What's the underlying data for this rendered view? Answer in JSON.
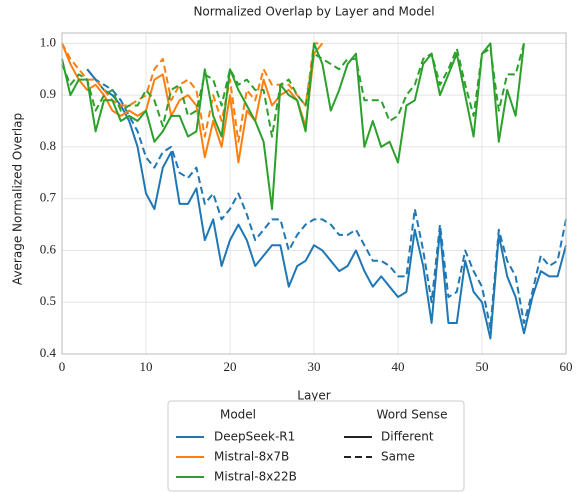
{
  "chart_data": {
    "type": "line",
    "title": "Normalized Overlap by Layer and Model",
    "x_label": "Layer",
    "y_label": "Average Normalized Overlap",
    "xlim": [
      0,
      60
    ],
    "xticks": [
      0,
      10,
      20,
      30,
      40,
      50,
      60
    ],
    "ylim": [
      0.4,
      1.02
    ],
    "yticks": [
      0.4,
      0.5,
      0.6,
      0.7,
      0.8,
      0.9,
      {
        "value": 1,
        "label": "1.0"
      }
    ],
    "grid": true,
    "legend": {
      "model_title": "Model",
      "sense_title": "Word Sense",
      "models": [
        {
          "name": "DeepSeek-R1",
          "color": "#1f77b4"
        },
        {
          "name": "Mistral-8x7B",
          "color": "#ff7f0e"
        },
        {
          "name": "Mistral-8x22B",
          "color": "#2ca02c"
        }
      ],
      "senses": [
        {
          "name": "Different",
          "dash": "solid"
        },
        {
          "name": "Same",
          "dash": "dashed"
        }
      ]
    },
    "x": [
      0,
      1,
      2,
      3,
      4,
      5,
      6,
      7,
      8,
      9,
      10,
      11,
      12,
      13,
      14,
      15,
      16,
      17,
      18,
      19,
      20,
      21,
      22,
      23,
      24,
      25,
      26,
      27,
      28,
      29,
      30,
      31,
      32,
      33,
      34,
      35,
      36,
      37,
      38,
      39,
      40,
      41,
      42,
      43,
      44,
      45,
      46,
      47,
      48,
      49,
      50,
      51,
      52,
      53,
      54,
      55,
      56,
      57,
      58,
      59,
      60
    ],
    "series": [
      {
        "model": 0,
        "sense": 0,
        "values": [
          null,
          null,
          null,
          0.95,
          0.93,
          0.91,
          0.9,
          0.88,
          0.85,
          0.8,
          0.71,
          0.68,
          0.76,
          0.79,
          0.69,
          0.69,
          0.72,
          0.62,
          0.66,
          0.57,
          0.62,
          0.65,
          0.62,
          0.57,
          0.59,
          0.61,
          0.61,
          0.53,
          0.57,
          0.58,
          0.61,
          0.6,
          0.58,
          0.56,
          0.57,
          0.6,
          0.56,
          0.53,
          0.55,
          0.53,
          0.51,
          0.52,
          0.64,
          0.57,
          0.46,
          0.64,
          0.46,
          0.46,
          0.58,
          0.52,
          0.5,
          0.43,
          0.63,
          0.55,
          0.51,
          0.44,
          0.51,
          0.56,
          0.55,
          0.55,
          0.61
        ]
      },
      {
        "model": 0,
        "sense": 1,
        "values": [
          null,
          null,
          null,
          0.95,
          0.93,
          0.92,
          0.91,
          0.89,
          0.86,
          0.83,
          0.78,
          0.76,
          0.79,
          0.8,
          0.75,
          0.74,
          0.76,
          0.69,
          0.71,
          0.66,
          0.68,
          0.71,
          0.67,
          0.62,
          0.64,
          0.66,
          0.66,
          0.6,
          0.63,
          0.65,
          0.66,
          0.66,
          0.65,
          0.63,
          0.63,
          0.64,
          0.61,
          0.58,
          0.58,
          0.57,
          0.55,
          0.55,
          0.68,
          0.6,
          0.5,
          0.65,
          0.51,
          0.52,
          0.6,
          0.56,
          0.53,
          0.45,
          0.64,
          0.58,
          0.55,
          0.46,
          0.52,
          0.59,
          0.57,
          0.58,
          0.66
        ]
      },
      {
        "model": 1,
        "sense": 0,
        "values": [
          1.0,
          0.96,
          0.93,
          0.91,
          0.92,
          0.9,
          0.87,
          0.86,
          0.87,
          0.86,
          0.87,
          0.93,
          0.94,
          0.86,
          0.89,
          0.9,
          0.88,
          0.78,
          0.85,
          0.8,
          0.9,
          0.77,
          0.87,
          0.85,
          0.93,
          0.88,
          0.9,
          0.91,
          0.89,
          0.84,
          0.98,
          1.0,
          null,
          null,
          null,
          null,
          null,
          null,
          null,
          null,
          null,
          null,
          null,
          null,
          null,
          null,
          null,
          null,
          null,
          null,
          null,
          null,
          null,
          null,
          null,
          null,
          null,
          null,
          null,
          null,
          null
        ]
      },
      {
        "model": 1,
        "sense": 1,
        "values": [
          1.0,
          0.97,
          0.95,
          0.93,
          0.93,
          0.91,
          0.89,
          0.88,
          0.88,
          0.89,
          0.9,
          0.95,
          0.97,
          0.89,
          0.92,
          0.93,
          0.91,
          0.82,
          0.9,
          0.85,
          0.93,
          0.81,
          0.91,
          0.89,
          0.95,
          0.92,
          0.92,
          0.92,
          0.9,
          0.88,
          1.0,
          1.0,
          null,
          null,
          null,
          null,
          null,
          null,
          null,
          null,
          null,
          null,
          null,
          null,
          null,
          null,
          null,
          null,
          null,
          null,
          null,
          null,
          null,
          null,
          null,
          null,
          null,
          null,
          null,
          null,
          null
        ]
      },
      {
        "model": 2,
        "sense": 0,
        "values": [
          0.97,
          0.9,
          0.93,
          0.93,
          0.83,
          0.89,
          0.89,
          0.85,
          0.86,
          0.85,
          0.87,
          0.81,
          0.83,
          0.86,
          0.86,
          0.82,
          0.83,
          0.95,
          0.86,
          0.82,
          0.95,
          0.91,
          0.88,
          0.85,
          0.81,
          0.68,
          0.92,
          0.9,
          0.89,
          0.83,
          1.0,
          0.96,
          0.87,
          0.91,
          0.96,
          0.98,
          0.8,
          0.85,
          0.8,
          0.81,
          0.77,
          0.88,
          0.89,
          0.96,
          0.98,
          0.9,
          0.94,
          0.98,
          0.9,
          0.82,
          0.98,
          1.0,
          0.81,
          0.91,
          0.86,
          1.0,
          null,
          null,
          null,
          null,
          null
        ]
      },
      {
        "model": 2,
        "sense": 1,
        "values": [
          0.96,
          0.92,
          0.94,
          0.93,
          0.87,
          0.9,
          0.91,
          0.87,
          0.88,
          0.88,
          0.91,
          0.89,
          0.84,
          0.91,
          0.92,
          0.86,
          0.87,
          0.94,
          0.93,
          0.88,
          0.95,
          0.92,
          0.93,
          0.91,
          0.91,
          0.82,
          0.92,
          0.93,
          0.9,
          0.88,
          0.98,
          0.97,
          0.96,
          0.95,
          0.97,
          0.97,
          0.89,
          0.89,
          0.89,
          0.85,
          0.86,
          0.9,
          0.92,
          0.97,
          0.98,
          0.92,
          0.95,
          0.99,
          0.92,
          0.86,
          0.98,
          0.99,
          0.87,
          0.94,
          0.94,
          1.0,
          null,
          null,
          null,
          null,
          null
        ]
      }
    ]
  }
}
